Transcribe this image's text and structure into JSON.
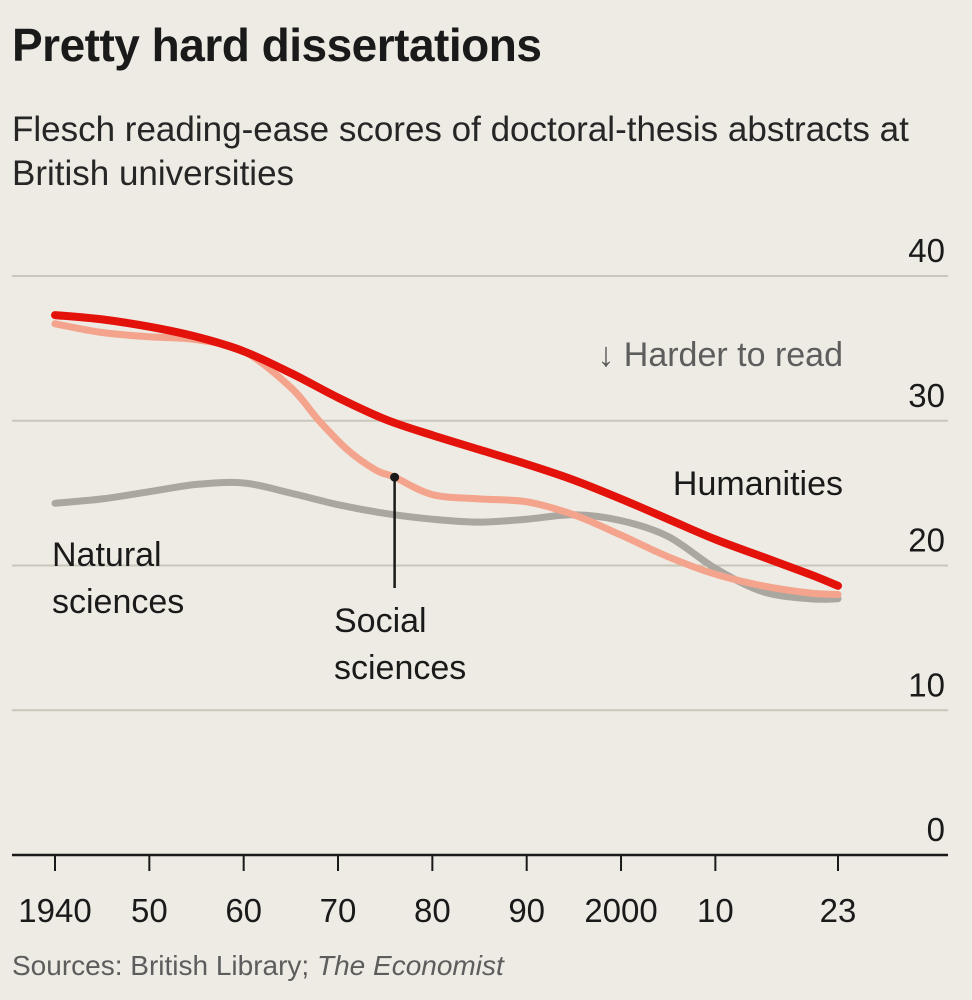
{
  "title": "Pretty hard dissertations",
  "subtitle": "Flesch reading-ease scores of doctoral-thesis abstracts at British universities",
  "source": {
    "prefix": "Sources: British Library; ",
    "italic": "The Economist"
  },
  "colors": {
    "background": "#edebe3",
    "humanities": "#e3120b",
    "social_sciences": "#f4a48c",
    "natural_sciences": "#a9a7a0",
    "grid": "#c9c6bc",
    "axis": "#1a1a1a"
  },
  "chart_data": {
    "type": "line",
    "title": "Pretty hard dissertations",
    "subtitle": "Flesch reading-ease scores of doctoral-thesis abstracts at British universities",
    "ylim": [
      0,
      40
    ],
    "xlim": [
      1940,
      2023
    ],
    "yticks": [
      0,
      10,
      20,
      30,
      40
    ],
    "ytick_labels": [
      "0",
      "10",
      "20",
      "30",
      "40"
    ],
    "xticks": [
      1940,
      1950,
      1960,
      1970,
      1980,
      1990,
      2000,
      2010,
      2023
    ],
    "xtick_labels": [
      "1940",
      "50",
      "60",
      "70",
      "80",
      "90",
      "2000",
      "10",
      "23"
    ],
    "grid": true,
    "y_axis_side": "right",
    "annotation": "↓ Harder to read",
    "series": [
      {
        "name": "Humanities",
        "color": "#e3120b",
        "x": [
          1940,
          1945,
          1950,
          1955,
          1960,
          1965,
          1970,
          1975,
          1980,
          1985,
          1990,
          1995,
          2000,
          2005,
          2010,
          2015,
          2020,
          2023
        ],
        "y": [
          37.3,
          37.0,
          36.5,
          35.8,
          34.8,
          33.3,
          31.6,
          30.1,
          29.0,
          28.0,
          27.0,
          25.9,
          24.6,
          23.2,
          21.8,
          20.6,
          19.4,
          18.6
        ]
      },
      {
        "name": "Social sciences",
        "color": "#f4a48c",
        "x": [
          1940,
          1945,
          1950,
          1955,
          1960,
          1965,
          1968,
          1971,
          1974,
          1976,
          1980,
          1985,
          1990,
          1995,
          2000,
          2005,
          2010,
          2015,
          2020,
          2023
        ],
        "y": [
          36.7,
          36.1,
          35.8,
          35.6,
          34.8,
          32.3,
          30.0,
          28.0,
          26.6,
          26.1,
          24.9,
          24.6,
          24.4,
          23.5,
          22.1,
          20.6,
          19.4,
          18.6,
          18.1,
          18.0
        ]
      },
      {
        "name": "Natural sciences",
        "color": "#a9a7a0",
        "x": [
          1940,
          1945,
          1950,
          1955,
          1960,
          1965,
          1970,
          1975,
          1980,
          1985,
          1990,
          1995,
          2000,
          2005,
          2010,
          2015,
          2020,
          2023
        ],
        "y": [
          24.3,
          24.6,
          25.1,
          25.6,
          25.7,
          25.0,
          24.2,
          23.6,
          23.2,
          23.0,
          23.2,
          23.5,
          23.1,
          22.0,
          19.8,
          18.2,
          17.7,
          17.7
        ]
      }
    ],
    "series_labels": {
      "humanities": "Humanities",
      "social_line1": "Social",
      "social_line2": "sciences",
      "natural_line1": "Natural",
      "natural_line2": "sciences"
    },
    "highlight_point": {
      "x": 1976,
      "y": 26.1,
      "series": "Social sciences"
    }
  }
}
